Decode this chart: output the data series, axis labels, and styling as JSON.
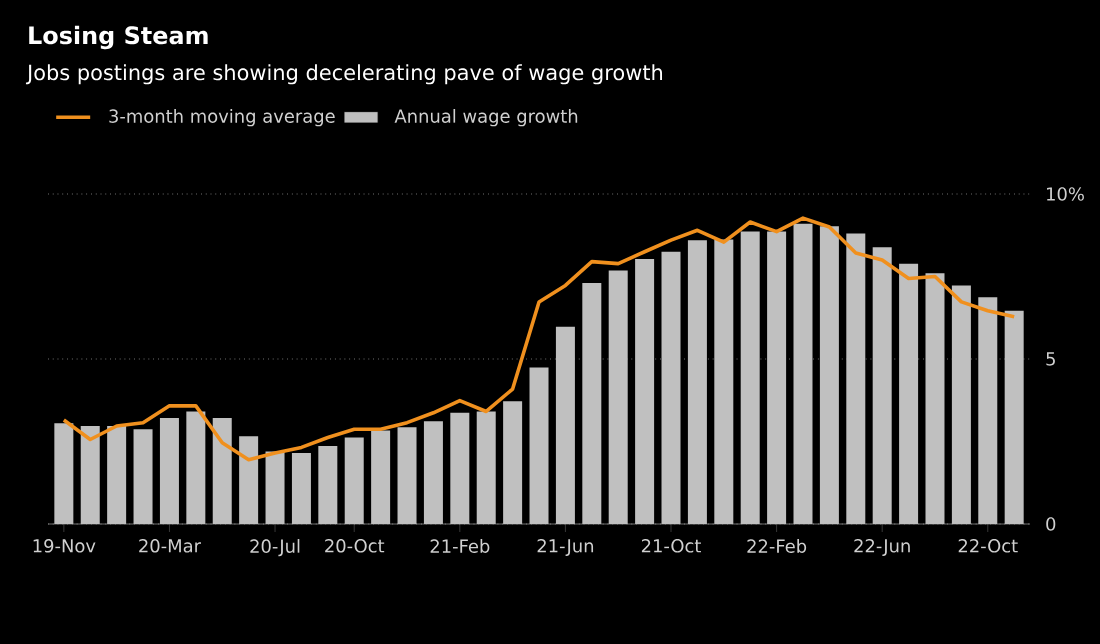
{
  "chart_data": {
    "type": "bar",
    "title": "Losing Steam",
    "subtitle": "Jobs postings are showing decelerating pave of wage growth",
    "categories": [
      "19-Nov",
      null,
      null,
      null,
      "20-Mar",
      null,
      null,
      null,
      "20-Jul",
      null,
      null,
      "20-Oct",
      null,
      null,
      null,
      "21-Feb",
      null,
      null,
      null,
      "21-Jun",
      null,
      null,
      null,
      "21-Oct",
      null,
      null,
      null,
      "22-Feb",
      null,
      null,
      null,
      "22-Jun",
      null,
      null,
      null,
      "22-Oct",
      null
    ],
    "series": [
      {
        "name": "3-month moving average",
        "type": "line",
        "color": "#f0901e",
        "values": [
          3.15,
          2.56,
          2.97,
          3.07,
          3.58,
          3.58,
          2.46,
          1.95,
          2.15,
          2.32,
          2.62,
          2.87,
          2.87,
          3.07,
          3.37,
          3.74,
          3.41,
          4.09,
          6.73,
          7.23,
          7.95,
          7.89,
          8.25,
          8.6,
          8.9,
          8.54,
          9.15,
          8.86,
          9.27,
          9.0,
          8.21,
          8.0,
          7.44,
          7.5,
          6.73,
          6.46,
          6.28
        ]
      },
      {
        "name": "Annual wage growth",
        "color": "#c0c0c0",
        "values": [
          3.05,
          2.97,
          2.97,
          2.87,
          3.21,
          3.41,
          3.21,
          2.66,
          2.2,
          2.15,
          2.36,
          2.62,
          2.83,
          2.93,
          3.11,
          3.37,
          3.41,
          3.72,
          4.74,
          5.98,
          7.3,
          7.68,
          8.03,
          8.25,
          8.6,
          8.62,
          8.86,
          8.86,
          9.1,
          9.02,
          8.8,
          8.39,
          7.89,
          7.6,
          7.23,
          6.87,
          6.46
        ]
      }
    ],
    "ylim": [
      0,
      10
    ],
    "yticks": [
      0,
      5,
      {
        "value": 10,
        "label": "10%"
      }
    ],
    "grid": "y",
    "legend": "top left"
  }
}
